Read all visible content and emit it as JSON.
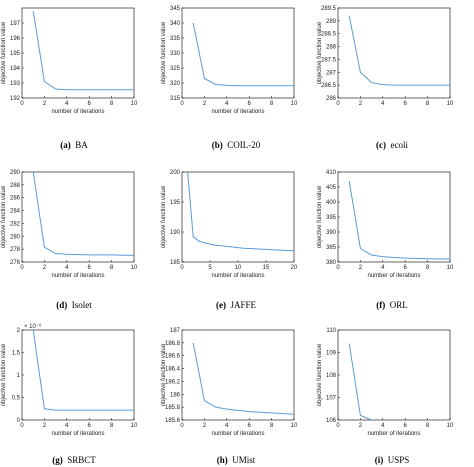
{
  "colors": {
    "series": "#5a9bd5",
    "axis": "#000000"
  },
  "chart_data": [
    {
      "type": "line",
      "id": "a",
      "caption_id": "(a)",
      "caption": "BA",
      "xlabel": "number of iterations",
      "ylabel": "objective function value",
      "xlim": [
        0,
        10
      ],
      "ylim": [
        192,
        198
      ],
      "xticks": [
        "0",
        "2",
        "4",
        "6",
        "8",
        "10"
      ],
      "yticks": [
        "192",
        "193",
        "194",
        "195",
        "196",
        "197"
      ],
      "x": [
        1,
        2,
        3,
        4,
        5,
        6,
        7,
        8,
        9,
        10
      ],
      "y": [
        197.8,
        193.1,
        192.6,
        192.55,
        192.55,
        192.55,
        192.55,
        192.55,
        192.55,
        192.55
      ]
    },
    {
      "type": "line",
      "id": "b",
      "caption_id": "(b)",
      "caption": "COIL-20",
      "xlabel": "number of iterations",
      "ylabel": "objective function value",
      "xlim": [
        0,
        10
      ],
      "ylim": [
        315,
        345
      ],
      "xticks": [
        "0",
        "2",
        "4",
        "6",
        "8",
        "10"
      ],
      "yticks": [
        "315",
        "320",
        "325",
        "330",
        "335",
        "340",
        "345"
      ],
      "x": [
        1,
        2,
        3,
        4,
        5,
        6,
        7,
        8,
        9,
        10
      ],
      "y": [
        340,
        321.5,
        319.5,
        319.2,
        319.1,
        319.1,
        319.1,
        319.1,
        319.1,
        319.1
      ]
    },
    {
      "type": "line",
      "id": "c",
      "caption_id": "(c)",
      "caption": "ecoli",
      "xlabel": "",
      "ylabel": "objective function value",
      "xlim": [
        0,
        10
      ],
      "ylim": [
        286,
        289.5
      ],
      "xticks": [
        "0",
        "2",
        "4",
        "6",
        "8",
        "10"
      ],
      "yticks": [
        "286",
        "286.5",
        "287",
        "287.5",
        "288",
        "288.5",
        "289",
        "289.5"
      ],
      "x": [
        1,
        2,
        3,
        4,
        5,
        6,
        7,
        8,
        9,
        10
      ],
      "y": [
        289.2,
        287.0,
        286.6,
        286.52,
        286.5,
        286.5,
        286.5,
        286.5,
        286.5,
        286.5
      ]
    },
    {
      "type": "line",
      "id": "d",
      "caption_id": "(d)",
      "caption": "Isolet",
      "xlabel": "number of iterations",
      "ylabel": "objective function value",
      "xlim": [
        0,
        10
      ],
      "ylim": [
        276,
        290
      ],
      "xticks": [
        "0",
        "2",
        "4",
        "6",
        "8",
        "10"
      ],
      "yticks": [
        "276",
        "278",
        "280",
        "282",
        "284",
        "286",
        "288",
        "290"
      ],
      "x": [
        1,
        2,
        3,
        4,
        5,
        6,
        7,
        8,
        9,
        10
      ],
      "y": [
        290,
        278.3,
        277.3,
        277.2,
        277.15,
        277.1,
        277.1,
        277.1,
        277.05,
        277.05
      ]
    },
    {
      "type": "line",
      "id": "e",
      "caption_id": "(e)",
      "caption": "JAFFE",
      "xlabel": "number of iterations",
      "ylabel": "objective function value",
      "xlim": [
        0,
        20
      ],
      "ylim": [
        185,
        200
      ],
      "xticks": [
        "0",
        "5",
        "10",
        "15",
        "20"
      ],
      "yticks": [
        "185",
        "190",
        "195",
        "200"
      ],
      "x": [
        1,
        2,
        3,
        4,
        5,
        6,
        7,
        8,
        9,
        10,
        11,
        12,
        13,
        14,
        15,
        16,
        17,
        18,
        19,
        20
      ],
      "y": [
        200,
        189.2,
        188.5,
        188.2,
        188.0,
        187.8,
        187.7,
        187.6,
        187.5,
        187.4,
        187.3,
        187.25,
        187.2,
        187.15,
        187.1,
        187.05,
        187.0,
        186.95,
        186.9,
        186.9
      ]
    },
    {
      "type": "line",
      "id": "f",
      "caption_id": "(f)",
      "caption": "ORL",
      "xlabel": "number of iterations",
      "ylabel": "objective function value",
      "xlim": [
        0,
        10
      ],
      "ylim": [
        380,
        410
      ],
      "xticks": [
        "0",
        "2",
        "4",
        "6",
        "8",
        "10"
      ],
      "yticks": [
        "380",
        "385",
        "390",
        "395",
        "400",
        "405",
        "410"
      ],
      "x": [
        1,
        2,
        3,
        4,
        5,
        6,
        7,
        8,
        9,
        10
      ],
      "y": [
        407,
        384.5,
        382.3,
        381.8,
        381.5,
        381.3,
        381.2,
        381.1,
        381.0,
        381.0
      ]
    },
    {
      "type": "line",
      "id": "g",
      "caption_id": "(g)",
      "caption": "SRBCT",
      "xlabel": "number of iterations",
      "ylabel": "objective function value",
      "xlim": [
        0,
        10
      ],
      "ylim": [
        0,
        2
      ],
      "xticks": [
        "0",
        "2",
        "4",
        "6",
        "8",
        "10"
      ],
      "yticks": [
        "0",
        "0.5",
        "1",
        "1.5",
        "2"
      ],
      "y_multiplier": "× 10⁻⁶",
      "x": [
        1,
        2,
        3,
        4,
        5,
        6,
        7,
        8,
        9,
        10
      ],
      "y": [
        2.0,
        0.25,
        0.22,
        0.22,
        0.22,
        0.22,
        0.22,
        0.22,
        0.22,
        0.22
      ]
    },
    {
      "type": "line",
      "id": "h",
      "caption_id": "(h)",
      "caption": "UMist",
      "xlabel": "number of iterations",
      "ylabel": "objective function value",
      "xlim": [
        0,
        10
      ],
      "ylim": [
        185.6,
        187
      ],
      "xticks": [
        "0",
        "2",
        "4",
        "6",
        "8",
        "10"
      ],
      "yticks": [
        "185.6",
        "185.8",
        "186",
        "186.2",
        "186.4",
        "186.6",
        "186.8",
        "187"
      ],
      "x": [
        1,
        2,
        3,
        4,
        5,
        6,
        7,
        8,
        9,
        10
      ],
      "y": [
        186.8,
        185.9,
        185.8,
        185.77,
        185.75,
        185.73,
        185.72,
        185.71,
        185.7,
        185.69
      ]
    },
    {
      "type": "line",
      "id": "i",
      "caption_id": "(i)",
      "caption": "USPS",
      "xlabel": "number of iterations",
      "ylabel": "objective function value",
      "xlim": [
        0,
        10
      ],
      "ylim": [
        106,
        110
      ],
      "xticks": [
        "0",
        "2",
        "4",
        "6",
        "8",
        "10"
      ],
      "yticks": [
        "106",
        "107",
        "108",
        "109",
        "110"
      ],
      "x": [
        1,
        2,
        3,
        4,
        5,
        6,
        7,
        8,
        9,
        10
      ],
      "y": [
        109.4,
        106.2,
        106.0,
        105.95,
        105.93,
        105.92,
        105.91,
        105.9,
        105.9,
        105.9
      ]
    }
  ]
}
